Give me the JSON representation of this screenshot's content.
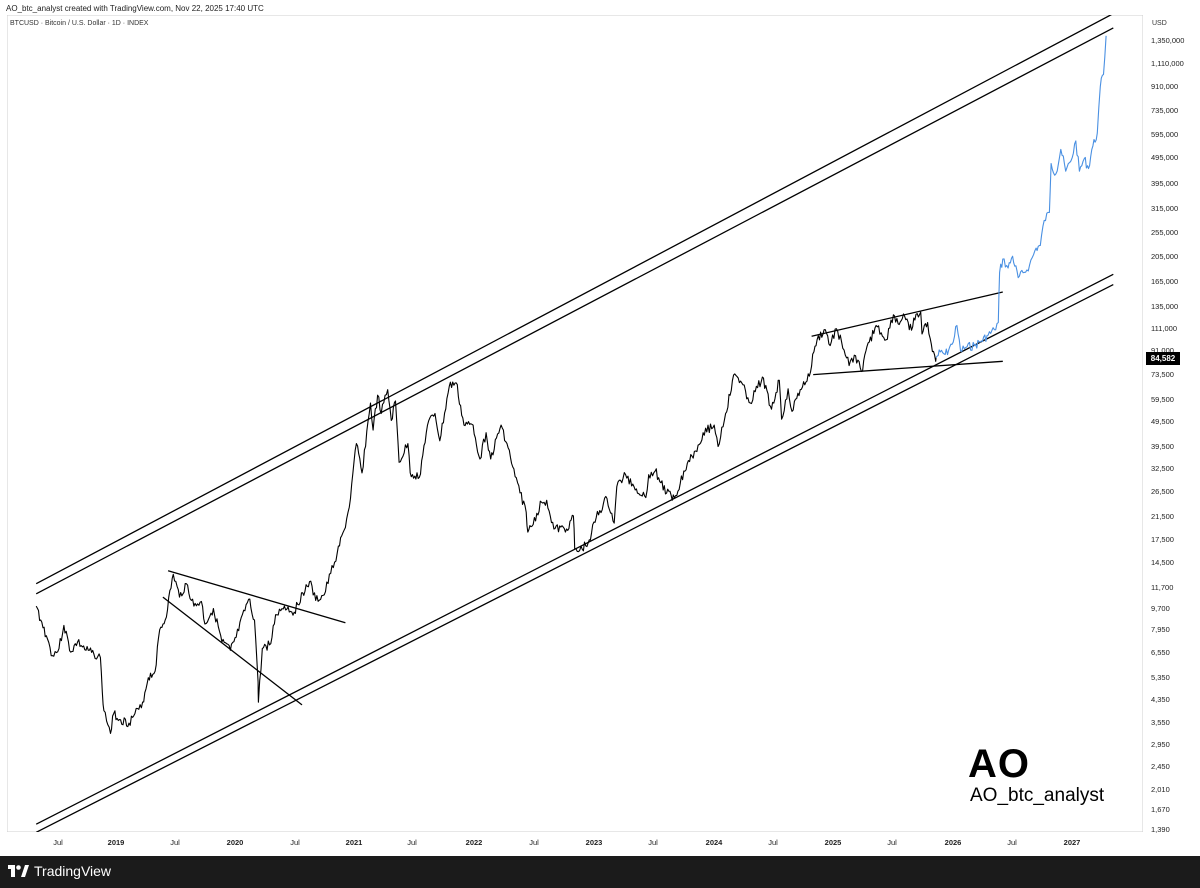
{
  "header": {
    "attribution": "AO_btc_analyst created with TradingView.com, Nov 22, 2025 17:40 UTC",
    "symbol_line": "BTCUSD · Bitcoin / U.S. Dollar · 1D · INDEX",
    "currency": "USD"
  },
  "watermark": {
    "logo_text": "AO",
    "handle": "AO_btc_analyst"
  },
  "footer": {
    "brand": "TradingView"
  },
  "colors": {
    "history": "#000000",
    "projection": "#4a90e2",
    "footer_bg": "#1b1b1b"
  },
  "chart_data": {
    "type": "line",
    "scale": "log",
    "current_price_label": "84,582",
    "y_ticks": [
      "1,350,000",
      "1,110,000",
      "910,000",
      "735,000",
      "595,000",
      "495,000",
      "395,000",
      "315,000",
      "255,000",
      "205,000",
      "165,000",
      "135,000",
      "111,000",
      "91,000",
      "73,500",
      "59,500",
      "49,500",
      "39,500",
      "32,500",
      "26,500",
      "21,500",
      "17,500",
      "14,500",
      "11,700",
      "9,700",
      "7,950",
      "6,550",
      "5,350",
      "4,350",
      "3,550",
      "2,950",
      "2,450",
      "2,010",
      "1,670",
      "1,390"
    ],
    "x_ticks": [
      {
        "label": "Jul",
        "year": false
      },
      {
        "label": "2019",
        "year": true
      },
      {
        "label": "Jul",
        "year": false
      },
      {
        "label": "2020",
        "year": true
      },
      {
        "label": "Jul",
        "year": false
      },
      {
        "label": "2021",
        "year": true
      },
      {
        "label": "Jul",
        "year": false
      },
      {
        "label": "2022",
        "year": true
      },
      {
        "label": "Jul",
        "year": false
      },
      {
        "label": "2023",
        "year": true
      },
      {
        "label": "Jul",
        "year": false
      },
      {
        "label": "2024",
        "year": true
      },
      {
        "label": "Jul",
        "year": false
      },
      {
        "label": "2025",
        "year": true
      },
      {
        "label": "Jul",
        "year": false
      },
      {
        "label": "2026",
        "year": true
      },
      {
        "label": "Jul",
        "year": false
      },
      {
        "label": "2027",
        "year": true
      }
    ],
    "series": [
      {
        "type": "historical",
        "points": [
          [
            "2018-05-01",
            9700
          ],
          [
            "2018-05-15",
            8600
          ],
          [
            "2018-06-01",
            7500
          ],
          [
            "2018-06-20",
            6300
          ],
          [
            "2018-07-10",
            6700
          ],
          [
            "2018-07-25",
            8200
          ],
          [
            "2018-08-15",
            6500
          ],
          [
            "2018-09-05",
            7100
          ],
          [
            "2018-10-01",
            6600
          ],
          [
            "2018-10-25",
            6400
          ],
          [
            "2018-11-14",
            6200
          ],
          [
            "2018-11-20",
            4600
          ],
          [
            "2018-11-25",
            3900
          ],
          [
            "2018-12-15",
            3200
          ],
          [
            "2018-12-25",
            3800
          ],
          [
            "2019-01-15",
            3600
          ],
          [
            "2019-02-10",
            3500
          ],
          [
            "2019-02-28",
            3800
          ],
          [
            "2019-03-20",
            4000
          ],
          [
            "2019-04-10",
            5200
          ],
          [
            "2019-05-01",
            5500
          ],
          [
            "2019-05-15",
            7900
          ],
          [
            "2019-06-01",
            8600
          ],
          [
            "2019-06-26",
            12800
          ],
          [
            "2019-07-15",
            10500
          ],
          [
            "2019-08-05",
            11800
          ],
          [
            "2019-08-28",
            9700
          ],
          [
            "2019-09-20",
            10100
          ],
          [
            "2019-10-01",
            8300
          ],
          [
            "2019-10-27",
            9500
          ],
          [
            "2019-11-22",
            7100
          ],
          [
            "2019-12-18",
            6600
          ],
          [
            "2020-01-05",
            7400
          ],
          [
            "2020-02-12",
            10300
          ],
          [
            "2020-03-01",
            8600
          ],
          [
            "2020-03-12",
            5000
          ],
          [
            "2020-03-13",
            4200
          ],
          [
            "2020-03-25",
            6700
          ],
          [
            "2020-04-20",
            7000
          ],
          [
            "2020-05-05",
            9000
          ],
          [
            "2020-06-01",
            9700
          ],
          [
            "2020-07-01",
            9200
          ],
          [
            "2020-07-27",
            10900
          ],
          [
            "2020-08-17",
            12000
          ],
          [
            "2020-09-05",
            10200
          ],
          [
            "2020-10-01",
            10700
          ],
          [
            "2020-10-21",
            12900
          ],
          [
            "2020-11-10",
            15400
          ],
          [
            "2020-12-01",
            18800
          ],
          [
            "2020-12-17",
            23000
          ],
          [
            "2021-01-08",
            40000
          ],
          [
            "2021-01-25",
            31000
          ],
          [
            "2021-02-20",
            57000
          ],
          [
            "2021-02-28",
            45000
          ],
          [
            "2021-03-14",
            61000
          ],
          [
            "2021-03-25",
            52000
          ],
          [
            "2021-04-14",
            64000
          ],
          [
            "2021-04-25",
            49000
          ],
          [
            "2021-05-08",
            58000
          ],
          [
            "2021-05-19",
            34000
          ],
          [
            "2021-06-15",
            40000
          ],
          [
            "2021-06-22",
            31000
          ],
          [
            "2021-07-20",
            29800
          ],
          [
            "2021-08-14",
            47000
          ],
          [
            "2021-09-06",
            52000
          ],
          [
            "2021-09-21",
            41000
          ],
          [
            "2021-10-20",
            66000
          ],
          [
            "2021-11-10",
            68000
          ],
          [
            "2021-12-04",
            47000
          ],
          [
            "2022-01-01",
            47000
          ],
          [
            "2022-01-22",
            35000
          ],
          [
            "2022-02-10",
            44000
          ],
          [
            "2022-02-24",
            35000
          ],
          [
            "2022-03-28",
            47000
          ],
          [
            "2022-04-15",
            40000
          ],
          [
            "2022-05-10",
            30000
          ],
          [
            "2022-06-13",
            22000
          ],
          [
            "2022-06-18",
            18500
          ],
          [
            "2022-07-01",
            19500
          ],
          [
            "2022-07-30",
            24000
          ],
          [
            "2022-08-15",
            24400
          ],
          [
            "2022-09-06",
            19000
          ],
          [
            "2022-10-15",
            19000
          ],
          [
            "2022-11-05",
            21300
          ],
          [
            "2022-11-09",
            16000
          ],
          [
            "2022-11-21",
            15600
          ],
          [
            "2022-12-20",
            16800
          ],
          [
            "2023-01-14",
            21000
          ],
          [
            "2023-02-16",
            24800
          ],
          [
            "2023-03-10",
            20000
          ],
          [
            "2023-03-18",
            27500
          ],
          [
            "2023-04-14",
            30500
          ],
          [
            "2023-05-10",
            27500
          ],
          [
            "2023-06-15",
            25000
          ],
          [
            "2023-06-24",
            30500
          ],
          [
            "2023-07-14",
            31500
          ],
          [
            "2023-08-18",
            26000
          ],
          [
            "2023-09-11",
            25000
          ],
          [
            "2023-10-24",
            34500
          ],
          [
            "2023-11-15",
            37500
          ],
          [
            "2023-12-08",
            44000
          ],
          [
            "2024-01-11",
            47000
          ],
          [
            "2024-01-23",
            39000
          ],
          [
            "2024-02-15",
            52000
          ],
          [
            "2024-03-14",
            73500
          ],
          [
            "2024-04-01",
            69000
          ],
          [
            "2024-05-01",
            57000
          ],
          [
            "2024-06-07",
            71500
          ],
          [
            "2024-07-05",
            54000
          ],
          [
            "2024-07-29",
            69500
          ],
          [
            "2024-08-05",
            49500
          ],
          [
            "2024-08-25",
            64500
          ],
          [
            "2024-09-06",
            53000
          ],
          [
            "2024-10-01",
            64000
          ],
          [
            "2024-10-29",
            72000
          ],
          [
            "2024-11-12",
            89000
          ],
          [
            "2024-11-22",
            99000
          ],
          [
            "2024-12-17",
            108000
          ],
          [
            "2025-01-01",
            94000
          ],
          [
            "2025-01-20",
            109000
          ],
          [
            "2025-02-05",
            97000
          ],
          [
            "2025-02-28",
            79000
          ],
          [
            "2025-03-20",
            86000
          ],
          [
            "2025-04-07",
            75000
          ],
          [
            "2025-05-01",
            97000
          ],
          [
            "2025-05-22",
            112000
          ],
          [
            "2025-06-22",
            99000
          ],
          [
            "2025-07-14",
            123000
          ],
          [
            "2025-08-01",
            113000
          ],
          [
            "2025-08-14",
            124000
          ],
          [
            "2025-09-01",
            108000
          ],
          [
            "2025-09-18",
            117500
          ],
          [
            "2025-10-06",
            126000
          ],
          [
            "2025-10-10",
            104000
          ],
          [
            "2025-10-27",
            115000
          ],
          [
            "2025-11-04",
            100000
          ],
          [
            "2025-11-21",
            82000
          ],
          [
            "2025-11-22",
            84582
          ]
        ]
      },
      {
        "type": "projection",
        "points": [
          [
            "2025-11-22",
            84582
          ],
          [
            "2025-12-05",
            89000
          ],
          [
            "2025-12-20",
            87000
          ],
          [
            "2026-01-10",
            95000
          ],
          [
            "2026-01-25",
            112000
          ],
          [
            "2026-02-05",
            90000
          ],
          [
            "2026-02-25",
            93000
          ],
          [
            "2026-03-20",
            94000
          ],
          [
            "2026-04-10",
            98000
          ],
          [
            "2026-05-01",
            103000
          ],
          [
            "2026-05-20",
            108000
          ],
          [
            "2026-06-01",
            115000
          ],
          [
            "2026-06-05",
            178000
          ],
          [
            "2026-06-15",
            200000
          ],
          [
            "2026-07-01",
            185000
          ],
          [
            "2026-07-15",
            205000
          ],
          [
            "2026-08-01",
            170000
          ],
          [
            "2026-08-20",
            178000
          ],
          [
            "2026-09-05",
            190000
          ],
          [
            "2026-09-25",
            220000
          ],
          [
            "2026-10-08",
            225000
          ],
          [
            "2026-10-20",
            280000
          ],
          [
            "2026-11-05",
            300000
          ],
          [
            "2026-11-10",
            460000
          ],
          [
            "2026-11-25",
            420000
          ],
          [
            "2026-12-10",
            520000
          ],
          [
            "2026-12-25",
            430000
          ],
          [
            "2027-01-10",
            470000
          ],
          [
            "2027-01-25",
            560000
          ],
          [
            "2027-02-05",
            430000
          ],
          [
            "2027-02-20",
            480000
          ],
          [
            "2027-03-05",
            440000
          ],
          [
            "2027-03-15",
            520000
          ],
          [
            "2027-04-01",
            600000
          ],
          [
            "2027-04-10",
            900000
          ],
          [
            "2027-04-20",
            1000000
          ],
          [
            "2027-04-28",
            1400000
          ]
        ]
      }
    ],
    "trendlines": [
      {
        "name": "channel-top-outer",
        "from": [
          "2018-05-01",
          11800
        ],
        "to": [
          "2027-05-20",
          1700000
        ]
      },
      {
        "name": "channel-top-inner",
        "from": [
          "2018-05-01",
          10800
        ],
        "to": [
          "2027-05-20",
          1500000
        ]
      },
      {
        "name": "channel-bottom-outer",
        "from": [
          "2018-05-01",
          1450
        ],
        "to": [
          "2027-05-20",
          175000
        ]
      },
      {
        "name": "channel-bottom-inner",
        "from": [
          "2018-05-01",
          1350
        ],
        "to": [
          "2027-05-20",
          160000
        ]
      },
      {
        "name": "triangle-upper",
        "from": [
          "2019-06-10",
          13200
        ],
        "to": [
          "2020-12-05",
          8400
        ]
      },
      {
        "name": "triangle-lower",
        "from": [
          "2019-05-25",
          10500
        ],
        "to": [
          "2020-07-25",
          4100
        ]
      },
      {
        "name": "range-upper",
        "from": [
          "2024-11-05",
          102000
        ],
        "to": [
          "2026-06-15",
          150000
        ]
      },
      {
        "name": "range-lower",
        "from": [
          "2024-11-10",
          73000
        ],
        "to": [
          "2026-06-15",
          82000
        ]
      }
    ]
  }
}
